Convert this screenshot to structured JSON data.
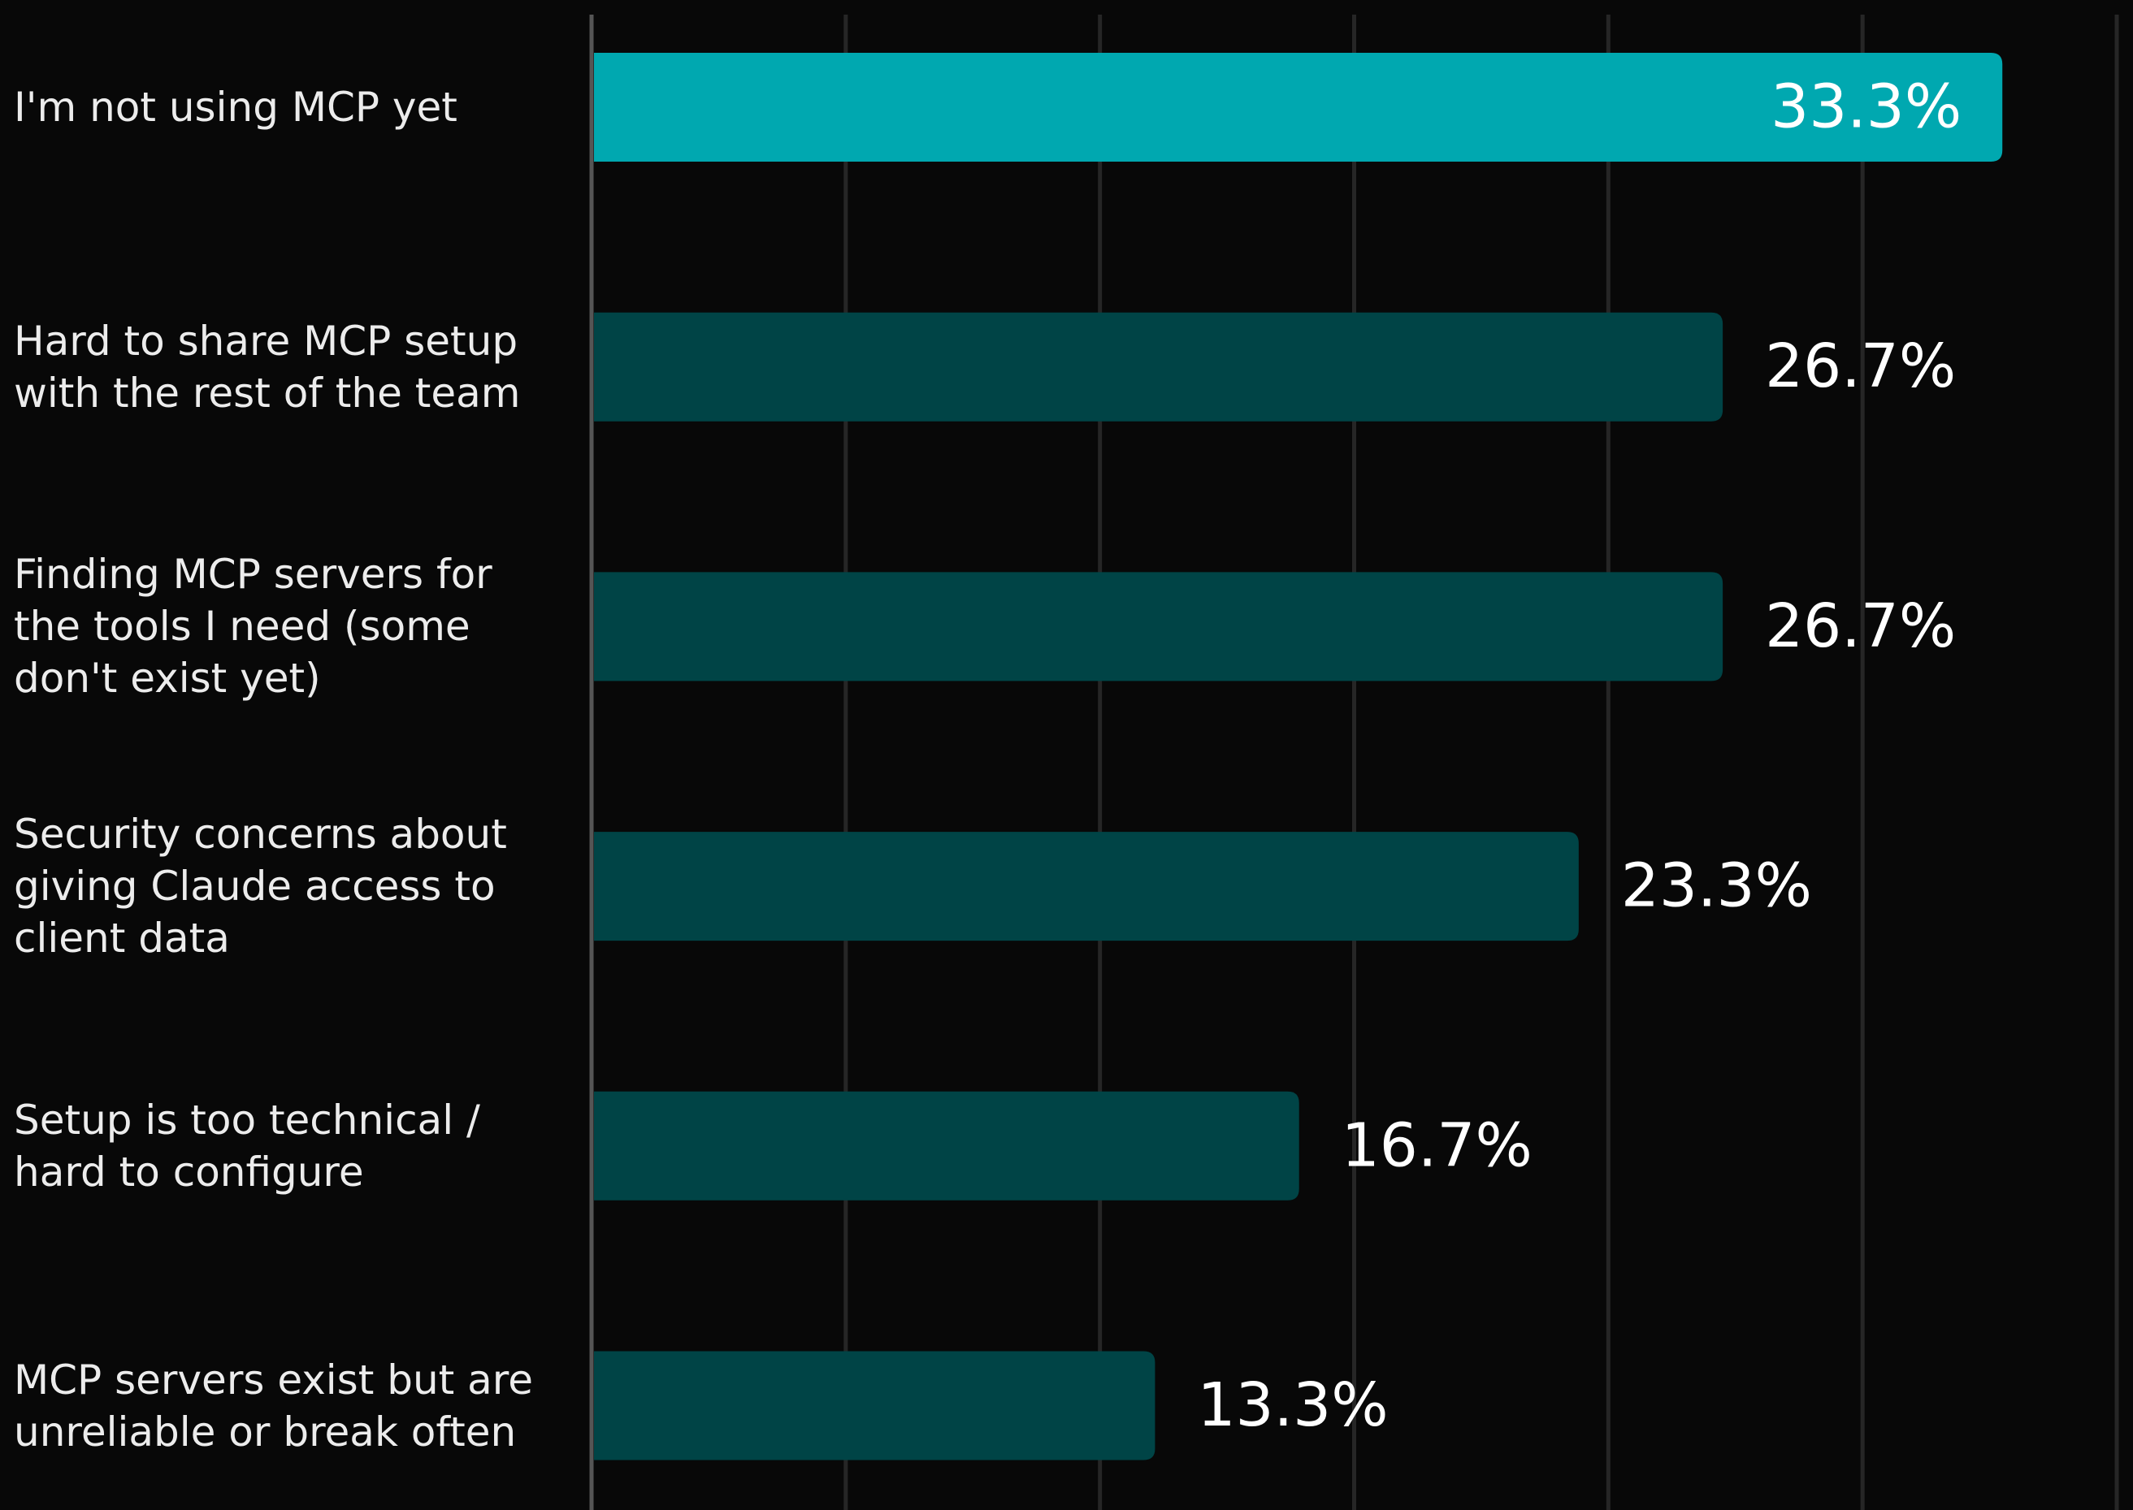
{
  "chart_data": {
    "type": "barh",
    "categories": [
      "I'm not using MCP yet",
      "Hard to share MCP setup with the rest of the team",
      "Finding MCP servers for the tools I need (some don't exist yet)",
      "Security concerns about giving Claude access to client data",
      "Setup is too technical / hard to configure",
      "MCP servers exist but are unreliable or break often"
    ],
    "values": [
      33.3,
      26.7,
      26.7,
      23.3,
      16.7,
      13.3
    ],
    "value_labels": [
      "33.3%",
      "26.7%",
      "26.7%",
      "23.3%",
      "16.7%",
      "13.3%"
    ],
    "colors": [
      "#00a8b0",
      "#004446",
      "#004446",
      "#004446",
      "#004446",
      "#004446"
    ],
    "xlim": [
      0,
      36
    ],
    "xticks": [
      0,
      6,
      12,
      18,
      24,
      30,
      36
    ],
    "grid": true
  }
}
